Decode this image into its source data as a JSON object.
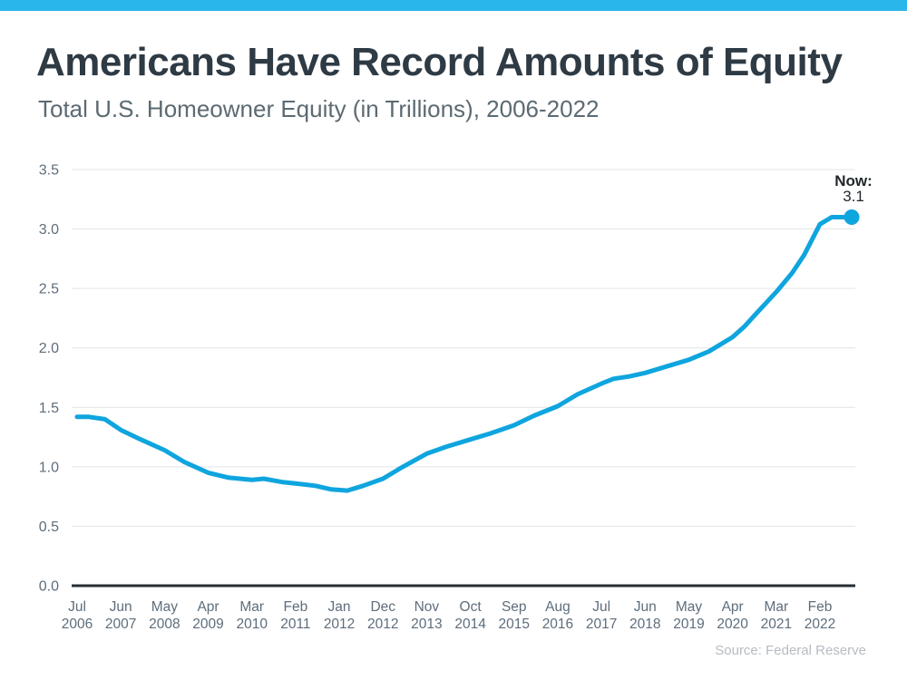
{
  "colors": {
    "topbar": "#29B6EA",
    "line": "#0FA5DE",
    "marker": "#0FA5DE",
    "axis": "#272D33",
    "grid": "#E2E4E6",
    "tick_text": "#5E6D7C",
    "annotation_text": "#1F262B"
  },
  "chart_data": {
    "type": "line",
    "title": "Americans Have Record Amounts of Equity",
    "subtitle": "Total U.S. Homeowner Equity (in Trillions), 2006-2022",
    "source": "Source: Federal Reserve",
    "unit": "trillions of U.S. dollars",
    "grid": true,
    "legend_position": "none",
    "ylim": [
      0,
      3.5
    ],
    "y_ticks": [
      "0.0",
      "0.5",
      "1.0",
      "1.5",
      "2.0",
      "2.5",
      "3.0",
      "3.5"
    ],
    "x_ticks": [
      {
        "month": "Jul",
        "year": "2006"
      },
      {
        "month": "Jun",
        "year": "2007"
      },
      {
        "month": "May",
        "year": "2008"
      },
      {
        "month": "Apr",
        "year": "2009"
      },
      {
        "month": "Mar",
        "year": "2010"
      },
      {
        "month": "Feb",
        "year": "2011"
      },
      {
        "month": "Jan",
        "year": "2012"
      },
      {
        "month": "Dec",
        "year": "2012"
      },
      {
        "month": "Nov",
        "year": "2013"
      },
      {
        "month": "Oct",
        "year": "2014"
      },
      {
        "month": "Sep",
        "year": "2015"
      },
      {
        "month": "Aug",
        "year": "2016"
      },
      {
        "month": "Jul",
        "year": "2017"
      },
      {
        "month": "Jun",
        "year": "2018"
      },
      {
        "month": "May",
        "year": "2019"
      },
      {
        "month": "Apr",
        "year": "2020"
      },
      {
        "month": "Mar",
        "year": "2021"
      },
      {
        "month": "Feb",
        "year": "2022"
      }
    ],
    "months_between_x_ticks": 11,
    "series": [
      {
        "name": "Total U.S. Homeowner Equity (in Trillions)",
        "points": [
          [
            0,
            1.42
          ],
          [
            3,
            1.42
          ],
          [
            7,
            1.4
          ],
          [
            11,
            1.31
          ],
          [
            16,
            1.23
          ],
          [
            22,
            1.14
          ],
          [
            27,
            1.04
          ],
          [
            33,
            0.95
          ],
          [
            38,
            0.91
          ],
          [
            44,
            0.89
          ],
          [
            47,
            0.9
          ],
          [
            52,
            0.87
          ],
          [
            55,
            0.86
          ],
          [
            60,
            0.84
          ],
          [
            64,
            0.81
          ],
          [
            68,
            0.8
          ],
          [
            72,
            0.84
          ],
          [
            77,
            0.9
          ],
          [
            82,
            1.0
          ],
          [
            88,
            1.11
          ],
          [
            93,
            1.17
          ],
          [
            99,
            1.23
          ],
          [
            104,
            1.28
          ],
          [
            110,
            1.35
          ],
          [
            115,
            1.43
          ],
          [
            121,
            1.51
          ],
          [
            126,
            1.61
          ],
          [
            132,
            1.7
          ],
          [
            135,
            1.74
          ],
          [
            139,
            1.76
          ],
          [
            143,
            1.79
          ],
          [
            148,
            1.84
          ],
          [
            154,
            1.9
          ],
          [
            159,
            1.97
          ],
          [
            165,
            2.09
          ],
          [
            168,
            2.18
          ],
          [
            171,
            2.29
          ],
          [
            176,
            2.47
          ],
          [
            180,
            2.63
          ],
          [
            183,
            2.78
          ],
          [
            187,
            3.04
          ],
          [
            190,
            3.1
          ],
          [
            195,
            3.1
          ]
        ]
      }
    ],
    "annotation": {
      "label": "Now:",
      "value": "3.1",
      "attached_to": "last-point"
    }
  }
}
